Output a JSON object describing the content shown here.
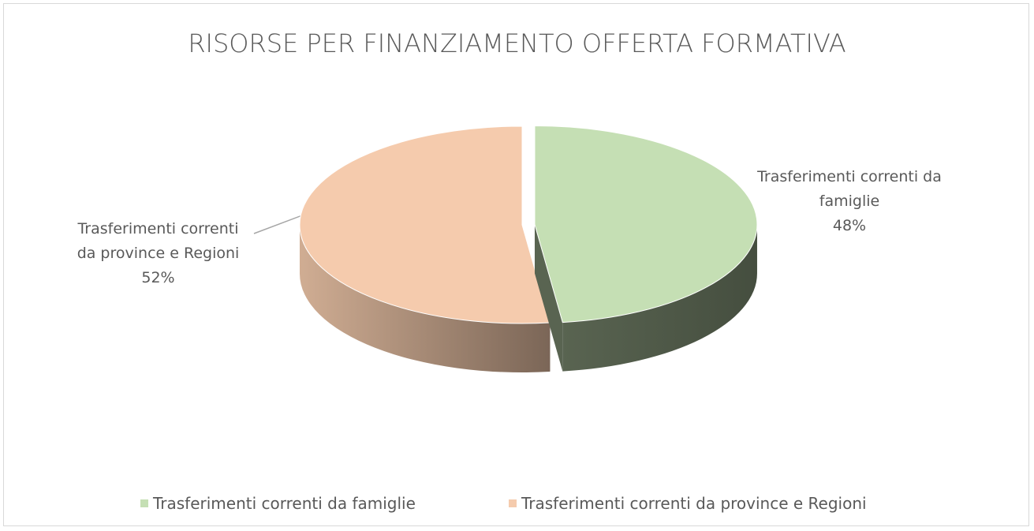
{
  "chart_data": {
    "type": "pie3d",
    "title": "RISORSE PER FINANZIAMENTO OFFERTA FORMATIVA",
    "categories": [
      "Trasferimenti correnti da famiglie",
      "Trasferimenti correnti da province e Regioni"
    ],
    "values": [
      48,
      52
    ],
    "value_labels": [
      "48%",
      "52%"
    ],
    "colors": [
      "#c5dfb4",
      "#f5cbad"
    ],
    "legend": "bottom"
  }
}
